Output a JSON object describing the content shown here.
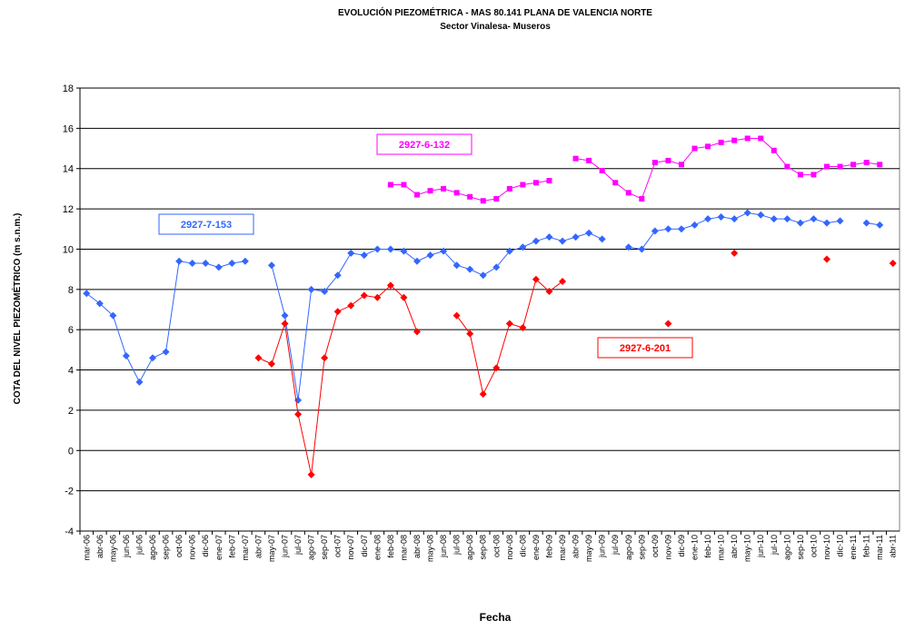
{
  "chart_data": {
    "type": "line",
    "title": "EVOLUCIÓN PIEZOMÉTRICA - MAS 80.141 PLANA DE VALENCIA NORTE",
    "subtitle": "Sector Vinalesa- Museros",
    "y_label": "COTA DEL NIVEL PIEZOMÉTRICO (m s.n.m.)",
    "x_label": "Fecha",
    "categories": [
      "mar-06",
      "abr-06",
      "may-06",
      "jun-06",
      "jul-06",
      "ago-06",
      "sep-06",
      "oct-06",
      "nov-06",
      "dic-06",
      "ene-07",
      "feb-07",
      "mar-07",
      "abr-07",
      "may-07",
      "jun-07",
      "jul-07",
      "ago-07",
      "sep-07",
      "oct-07",
      "nov-07",
      "dic-07",
      "ene-08",
      "feb-08",
      "mar-08",
      "abr-08",
      "may-08",
      "jun-08",
      "jul-08",
      "ago-08",
      "sep-08",
      "oct-08",
      "nov-08",
      "dic-08",
      "ene-09",
      "feb-09",
      "mar-09",
      "abr-09",
      "may-09",
      "jun-09",
      "jul-09",
      "ago-09",
      "sep-09",
      "oct-09",
      "nov-09",
      "dic-09",
      "ene-10",
      "feb-10",
      "mar-10",
      "abr-10",
      "may-10",
      "jun-10",
      "jul-10",
      "ago-10",
      "sep-10",
      "oct-10",
      "nov-10",
      "dic-10",
      "ene-11",
      "feb-11",
      "mar-11",
      "abr-11"
    ],
    "series": [
      {
        "name": "2927-7-153",
        "color": "#3366ff",
        "marker": "diamond",
        "values": [
          7.8,
          7.3,
          6.7,
          4.7,
          3.4,
          4.6,
          4.9,
          9.4,
          9.3,
          9.3,
          9.1,
          9.3,
          9.4,
          null,
          9.2,
          6.7,
          2.5,
          8.0,
          7.9,
          8.7,
          9.8,
          9.7,
          10.0,
          10.0,
          9.9,
          9.4,
          9.7,
          9.9,
          9.2,
          9.0,
          8.7,
          9.1,
          9.9,
          10.1,
          10.4,
          10.6,
          10.4,
          10.6,
          10.8,
          10.5,
          null,
          10.1,
          10.0,
          10.9,
          11.0,
          11.0,
          11.2,
          11.5,
          11.6,
          11.5,
          11.8,
          11.7,
          11.5,
          11.5,
          11.3,
          11.5,
          11.3,
          11.4,
          null,
          11.3,
          11.2,
          null
        ]
      },
      {
        "name": "2927-6-132",
        "color": "#ff00ff",
        "marker": "square",
        "values": [
          null,
          null,
          null,
          null,
          null,
          null,
          null,
          null,
          null,
          null,
          null,
          null,
          null,
          null,
          null,
          null,
          null,
          null,
          null,
          null,
          null,
          null,
          null,
          13.2,
          13.2,
          12.7,
          12.9,
          13.0,
          12.8,
          12.6,
          12.4,
          12.5,
          13.0,
          13.2,
          13.3,
          13.4,
          null,
          14.5,
          14.4,
          13.9,
          13.3,
          12.8,
          12.5,
          14.3,
          14.4,
          14.2,
          15.0,
          15.1,
          15.3,
          15.4,
          15.5,
          15.5,
          14.9,
          14.1,
          13.7,
          13.7,
          14.1,
          14.1,
          14.2,
          14.3,
          14.2,
          null
        ]
      },
      {
        "name": "2927-6-201",
        "color": "#ff0000",
        "marker": "diamond",
        "values": [
          null,
          null,
          null,
          null,
          null,
          null,
          null,
          null,
          null,
          null,
          null,
          null,
          null,
          4.6,
          4.3,
          6.3,
          1.8,
          -1.2,
          4.6,
          6.9,
          7.2,
          7.7,
          7.6,
          8.2,
          7.6,
          5.9,
          null,
          null,
          6.7,
          5.8,
          2.8,
          4.1,
          6.3,
          6.1,
          8.5,
          7.9,
          8.4,
          null,
          null,
          null,
          null,
          null,
          null,
          null,
          6.3,
          null,
          null,
          null,
          null,
          9.8,
          null,
          null,
          null,
          null,
          null,
          null,
          9.5,
          null,
          null,
          null,
          null,
          9.3
        ]
      }
    ],
    "ylim": [
      -4,
      18
    ],
    "yticks": [
      -4,
      -2,
      0,
      2,
      4,
      6,
      8,
      10,
      12,
      14,
      16,
      18
    ],
    "grid": true
  }
}
